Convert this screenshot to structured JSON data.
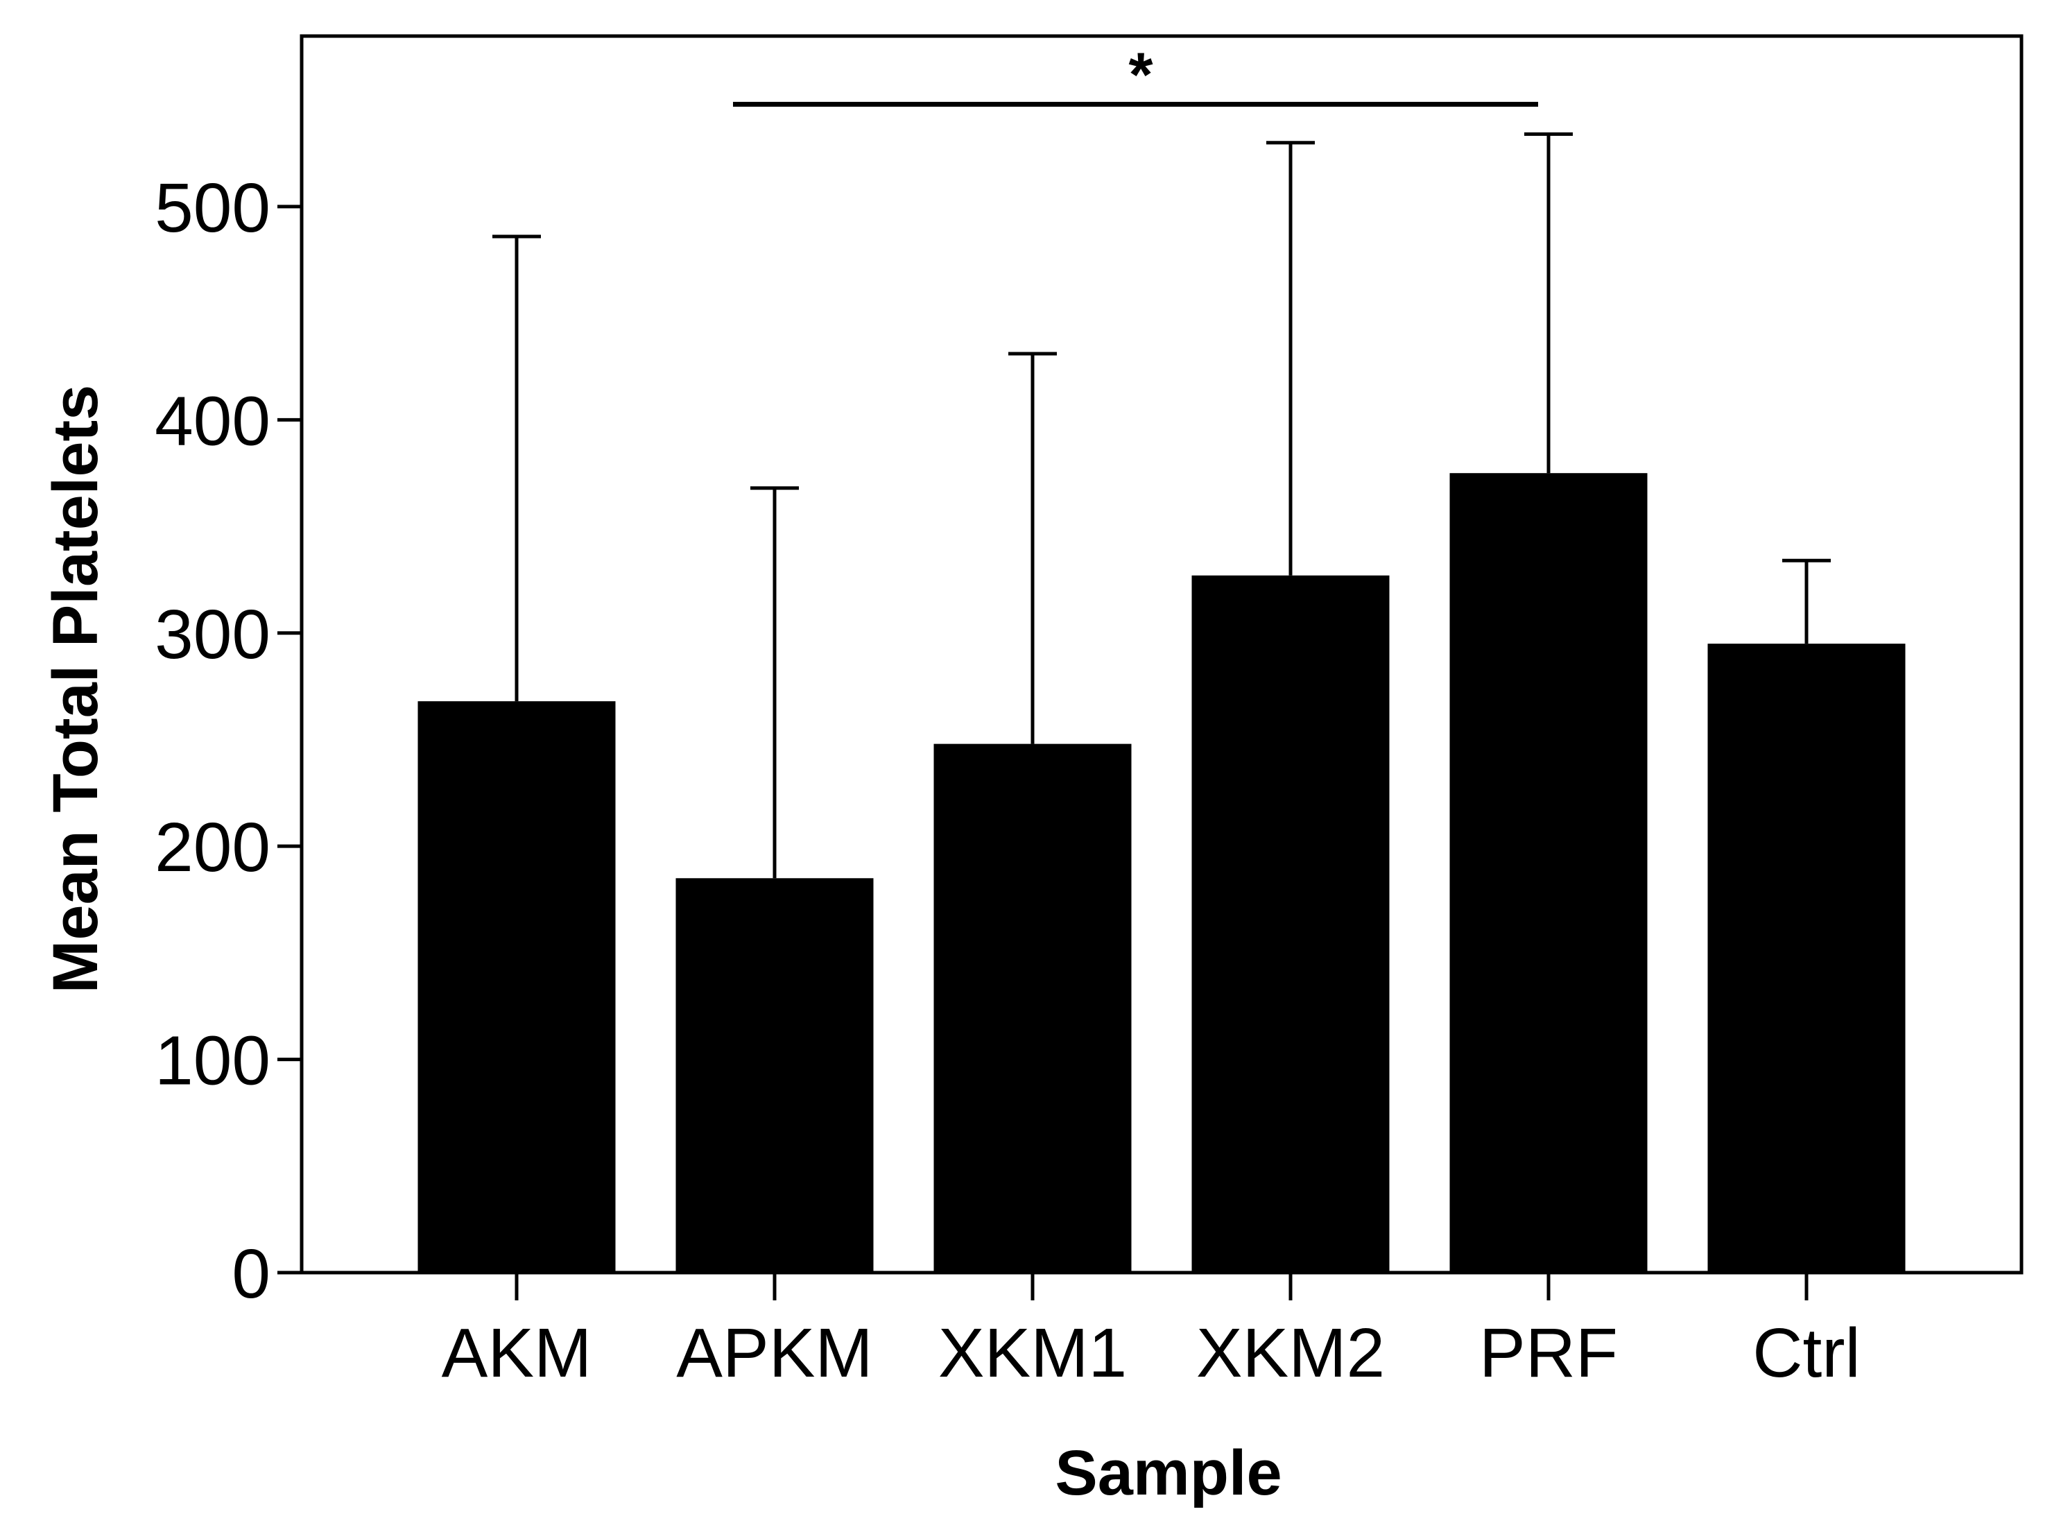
{
  "chart_data": {
    "type": "bar",
    "categories": [
      "AKM",
      "APKM",
      "XKM1",
      "XKM2",
      "PRF",
      "Ctrl"
    ],
    "series": [
      {
        "values": [
          268,
          185,
          248,
          327,
          375,
          295
        ],
        "error_upper": [
          486,
          368,
          431,
          530,
          534,
          334
        ],
        "color": "#000000"
      }
    ],
    "xlabel": "Sample",
    "ylabel": "Mean Total Platelets",
    "yticks": [
      0,
      100,
      200,
      300,
      400,
      500
    ],
    "ylim": [
      0,
      580
    ],
    "grid": false,
    "annotations": [
      {
        "text": "*",
        "from": "APKM",
        "to": "PRF",
        "y": 548
      }
    ]
  }
}
